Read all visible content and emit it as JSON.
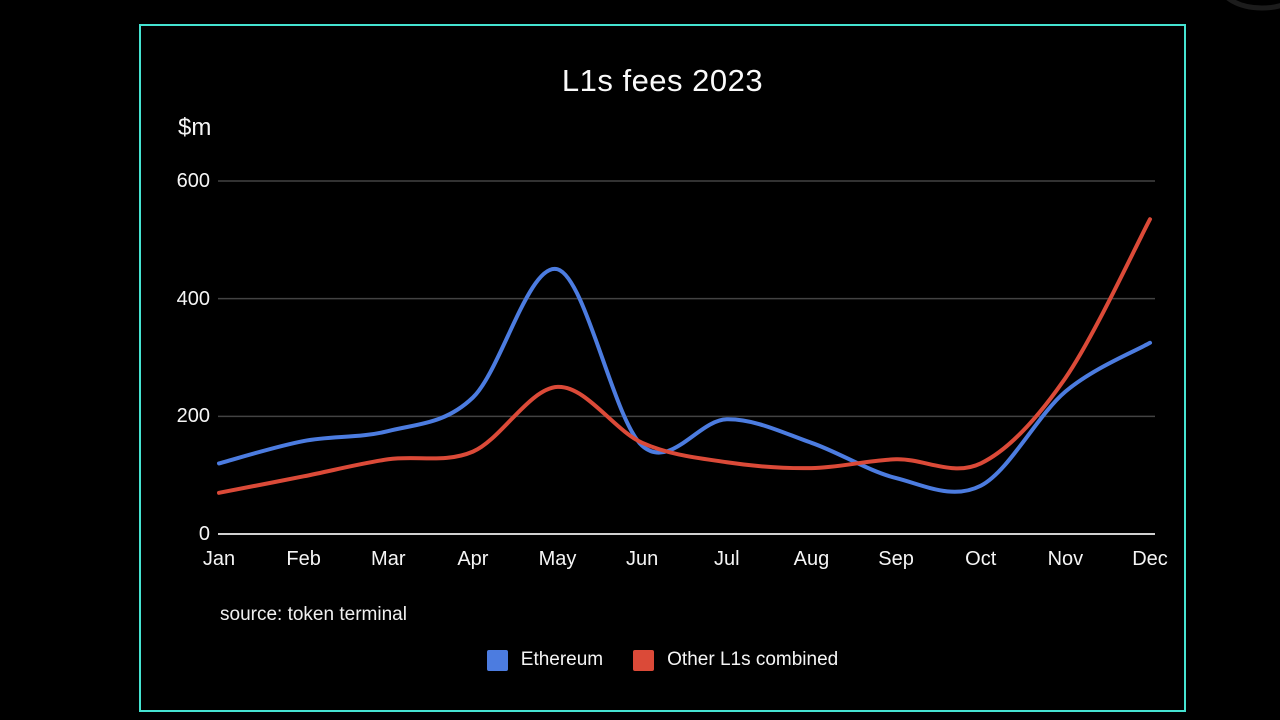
{
  "window": {
    "background": "#000000"
  },
  "frame": {
    "border_color": "#45e3d1"
  },
  "decor": {
    "corner_arc_color": "#1c1c1c"
  },
  "chart_data": {
    "type": "line",
    "title": "L1s fees 2023",
    "ylabel": "$m",
    "xlabel": "",
    "source": "source: token terminal",
    "categories": [
      "Jan",
      "Feb",
      "Mar",
      "Apr",
      "May",
      "Jun",
      "Jul",
      "Aug",
      "Sep",
      "Oct",
      "Nov",
      "Dec"
    ],
    "yticks": [
      0,
      200,
      400,
      600
    ],
    "ylim": [
      0,
      600
    ],
    "grid": true,
    "smooth": true,
    "legend_position": "bottom",
    "text_color": "#f5f5f5",
    "gridline_color": "#434343",
    "axis_color": "#d0d0d0",
    "series": [
      {
        "name": "Ethereum",
        "color": "#4c7ce0",
        "values": [
          120,
          158,
          175,
          232,
          450,
          150,
          195,
          155,
          95,
          82,
          242,
          325
        ]
      },
      {
        "name": "Other L1s combined",
        "color": "#db4a38",
        "values": [
          70,
          98,
          127,
          140,
          250,
          155,
          122,
          112,
          127,
          120,
          265,
          535
        ]
      }
    ]
  }
}
